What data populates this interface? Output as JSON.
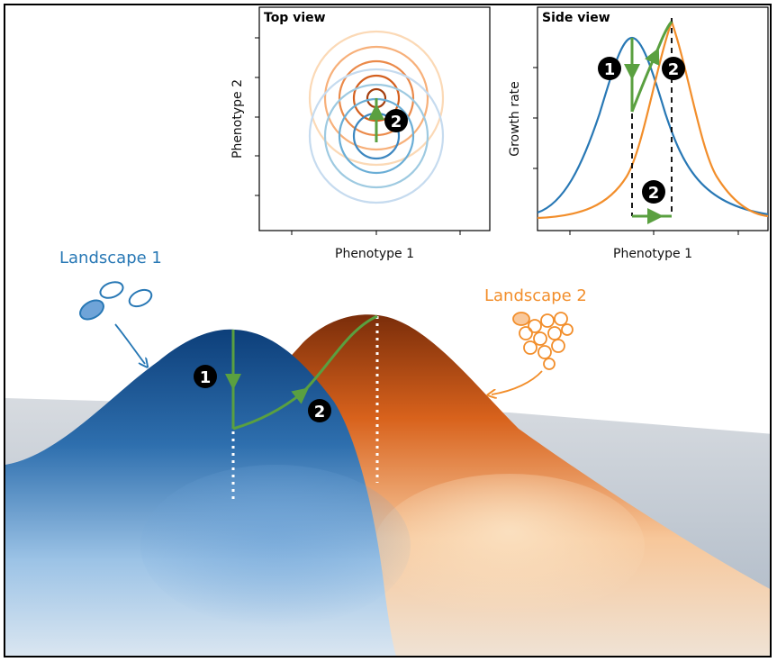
{
  "top_view": {
    "title": "Top view",
    "xlabel": "Phenotype 1",
    "ylabel": "Phenotype 2",
    "step_marker": "2"
  },
  "side_view": {
    "title": "Side view",
    "xlabel": "Phenotype 1",
    "ylabel": "Growth rate",
    "step_markers": [
      "1",
      "2",
      "2"
    ]
  },
  "landscape": {
    "label_1": "Landscape 1",
    "label_2": "Landscape 2",
    "step_1": "1",
    "step_2": "2"
  },
  "colors": {
    "landscape_1": "#2878b5",
    "landscape_2": "#f28e2b",
    "trajectory": "#5aa040",
    "marker_fill": "#000000"
  }
}
